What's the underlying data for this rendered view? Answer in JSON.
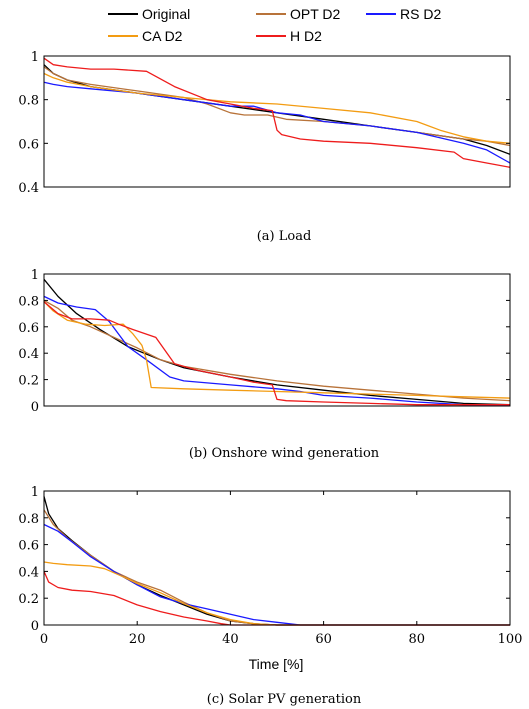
{
  "legend": [
    {
      "name": "Original",
      "color": "#000000"
    },
    {
      "name": "OPT D2",
      "color": "#b8733a"
    },
    {
      "name": "RS D2",
      "color": "#1a1aff"
    },
    {
      "name": "CA D2",
      "color": "#f39c12"
    },
    {
      "name": "H D2",
      "color": "#ee1c1c"
    }
  ],
  "chart_data": [
    {
      "type": "line",
      "caption": "(a) Load",
      "xlim": [
        0,
        100
      ],
      "ylim": [
        0.4,
        1.0
      ],
      "yticks": [
        "0.4",
        "0.6",
        "0.8",
        "1"
      ],
      "ytick_values": [
        0.4,
        0.6,
        0.8,
        1.0
      ],
      "xticks": [],
      "xlabel": "",
      "series": [
        {
          "name": "Original",
          "color": "#000000",
          "points": [
            [
              0,
              0.96
            ],
            [
              2,
              0.92
            ],
            [
              5,
              0.89
            ],
            [
              10,
              0.86
            ],
            [
              20,
              0.83
            ],
            [
              30,
              0.8
            ],
            [
              40,
              0.77
            ],
            [
              50,
              0.74
            ],
            [
              60,
              0.71
            ],
            [
              70,
              0.68
            ],
            [
              80,
              0.65
            ],
            [
              90,
              0.62
            ],
            [
              95,
              0.59
            ],
            [
              100,
              0.55
            ]
          ]
        },
        {
          "name": "OPT D2",
          "color": "#b8733a",
          "points": [
            [
              0,
              0.95
            ],
            [
              2,
              0.92
            ],
            [
              5,
              0.89
            ],
            [
              10,
              0.87
            ],
            [
              20,
              0.84
            ],
            [
              30,
              0.81
            ],
            [
              35,
              0.78
            ],
            [
              40,
              0.74
            ],
            [
              43,
              0.73
            ],
            [
              48,
              0.73
            ],
            [
              52,
              0.71
            ],
            [
              60,
              0.7
            ],
            [
              70,
              0.68
            ],
            [
              80,
              0.65
            ],
            [
              90,
              0.62
            ],
            [
              95,
              0.61
            ],
            [
              100,
              0.59
            ]
          ]
        },
        {
          "name": "RS D2",
          "color": "#1a1aff",
          "points": [
            [
              0,
              0.88
            ],
            [
              2,
              0.87
            ],
            [
              5,
              0.86
            ],
            [
              10,
              0.85
            ],
            [
              20,
              0.83
            ],
            [
              30,
              0.8
            ],
            [
              40,
              0.77
            ],
            [
              45,
              0.77
            ],
            [
              50,
              0.74
            ],
            [
              55,
              0.73
            ],
            [
              60,
              0.7
            ],
            [
              70,
              0.68
            ],
            [
              80,
              0.65
            ],
            [
              90,
              0.6
            ],
            [
              95,
              0.57
            ],
            [
              100,
              0.51
            ]
          ]
        },
        {
          "name": "CA D2",
          "color": "#f39c12",
          "points": [
            [
              0,
              0.92
            ],
            [
              2,
              0.9
            ],
            [
              5,
              0.88
            ],
            [
              10,
              0.86
            ],
            [
              20,
              0.83
            ],
            [
              30,
              0.81
            ],
            [
              40,
              0.79
            ],
            [
              50,
              0.78
            ],
            [
              60,
              0.76
            ],
            [
              70,
              0.74
            ],
            [
              80,
              0.7
            ],
            [
              85,
              0.66
            ],
            [
              90,
              0.63
            ],
            [
              95,
              0.61
            ],
            [
              100,
              0.6
            ]
          ]
        },
        {
          "name": "H D2",
          "color": "#ee1c1c",
          "points": [
            [
              0,
              0.99
            ],
            [
              2,
              0.96
            ],
            [
              5,
              0.95
            ],
            [
              10,
              0.94
            ],
            [
              15,
              0.94
            ],
            [
              22,
              0.93
            ],
            [
              28,
              0.86
            ],
            [
              35,
              0.8
            ],
            [
              40,
              0.78
            ],
            [
              45,
              0.76
            ],
            [
              49,
              0.75
            ],
            [
              50,
              0.66
            ],
            [
              51,
              0.64
            ],
            [
              55,
              0.62
            ],
            [
              60,
              0.61
            ],
            [
              70,
              0.6
            ],
            [
              80,
              0.58
            ],
            [
              88,
              0.56
            ],
            [
              90,
              0.53
            ],
            [
              95,
              0.51
            ],
            [
              100,
              0.49
            ]
          ]
        }
      ]
    },
    {
      "type": "line",
      "caption": "(b) Onshore wind generation",
      "xlim": [
        0,
        100
      ],
      "ylim": [
        0,
        1.0
      ],
      "yticks": [
        "0",
        "0.2",
        "0.4",
        "0.6",
        "0.8",
        "1"
      ],
      "ytick_values": [
        0,
        0.2,
        0.4,
        0.6,
        0.8,
        1.0
      ],
      "xticks": [],
      "xlabel": "",
      "series": [
        {
          "name": "Original",
          "color": "#000000",
          "points": [
            [
              0,
              0.96
            ],
            [
              3,
              0.83
            ],
            [
              7,
              0.7
            ],
            [
              12,
              0.58
            ],
            [
              18,
              0.45
            ],
            [
              25,
              0.35
            ],
            [
              30,
              0.29
            ],
            [
              40,
              0.22
            ],
            [
              50,
              0.16
            ],
            [
              60,
              0.12
            ],
            [
              70,
              0.08
            ],
            [
              80,
              0.05
            ],
            [
              90,
              0.02
            ],
            [
              100,
              0.01
            ]
          ]
        },
        {
          "name": "OPT D2",
          "color": "#b8733a",
          "points": [
            [
              0,
              0.8
            ],
            [
              3,
              0.74
            ],
            [
              6,
              0.65
            ],
            [
              10,
              0.6
            ],
            [
              15,
              0.52
            ],
            [
              20,
              0.44
            ],
            [
              25,
              0.35
            ],
            [
              30,
              0.3
            ],
            [
              40,
              0.24
            ],
            [
              50,
              0.19
            ],
            [
              60,
              0.15
            ],
            [
              70,
              0.12
            ],
            [
              80,
              0.09
            ],
            [
              90,
              0.06
            ],
            [
              100,
              0.04
            ]
          ]
        },
        {
          "name": "RS D2",
          "color": "#1a1aff",
          "points": [
            [
              0,
              0.83
            ],
            [
              3,
              0.78
            ],
            [
              7,
              0.75
            ],
            [
              11,
              0.73
            ],
            [
              14,
              0.64
            ],
            [
              18,
              0.45
            ],
            [
              22,
              0.35
            ],
            [
              27,
              0.22
            ],
            [
              30,
              0.19
            ],
            [
              40,
              0.16
            ],
            [
              50,
              0.13
            ],
            [
              55,
              0.11
            ],
            [
              60,
              0.08
            ],
            [
              70,
              0.06
            ],
            [
              80,
              0.03
            ],
            [
              90,
              0.01
            ],
            [
              100,
              0.01
            ]
          ]
        },
        {
          "name": "CA D2",
          "color": "#f39c12",
          "points": [
            [
              0,
              0.79
            ],
            [
              2,
              0.72
            ],
            [
              5,
              0.65
            ],
            [
              9,
              0.62
            ],
            [
              13,
              0.61
            ],
            [
              17,
              0.62
            ],
            [
              19,
              0.55
            ],
            [
              21,
              0.46
            ],
            [
              22,
              0.35
            ],
            [
              23,
              0.14
            ],
            [
              30,
              0.13
            ],
            [
              40,
              0.12
            ],
            [
              50,
              0.11
            ],
            [
              60,
              0.1
            ],
            [
              70,
              0.09
            ],
            [
              80,
              0.08
            ],
            [
              90,
              0.07
            ],
            [
              100,
              0.06
            ]
          ]
        },
        {
          "name": "H D2",
          "color": "#ee1c1c",
          "points": [
            [
              0,
              0.79
            ],
            [
              3,
              0.7
            ],
            [
              6,
              0.66
            ],
            [
              10,
              0.66
            ],
            [
              14,
              0.65
            ],
            [
              16,
              0.62
            ],
            [
              19,
              0.58
            ],
            [
              24,
              0.52
            ],
            [
              26,
              0.42
            ],
            [
              28,
              0.32
            ],
            [
              33,
              0.27
            ],
            [
              40,
              0.22
            ],
            [
              45,
              0.18
            ],
            [
              49,
              0.16
            ],
            [
              50,
              0.05
            ],
            [
              52,
              0.04
            ],
            [
              60,
              0.03
            ],
            [
              70,
              0.02
            ],
            [
              80,
              0.01
            ],
            [
              90,
              0.01
            ],
            [
              100,
              0.01
            ]
          ]
        }
      ]
    },
    {
      "type": "line",
      "caption": "(c) Solar PV generation",
      "xlim": [
        0,
        100
      ],
      "ylim": [
        0,
        1.0
      ],
      "yticks": [
        "0",
        "0.2",
        "0.4",
        "0.6",
        "0.8",
        "1"
      ],
      "ytick_values": [
        0,
        0.2,
        0.4,
        0.6,
        0.8,
        1.0
      ],
      "xticks": [
        "0",
        "20",
        "40",
        "60",
        "80",
        "100"
      ],
      "xtick_values": [
        0,
        20,
        40,
        60,
        80,
        100
      ],
      "xlabel": "Time [%]",
      "series": [
        {
          "name": "Original",
          "color": "#000000",
          "points": [
            [
              0,
              0.96
            ],
            [
              1,
              0.83
            ],
            [
              3,
              0.72
            ],
            [
              6,
              0.63
            ],
            [
              10,
              0.52
            ],
            [
              15,
              0.4
            ],
            [
              20,
              0.3
            ],
            [
              25,
              0.22
            ],
            [
              30,
              0.15
            ],
            [
              35,
              0.08
            ],
            [
              40,
              0.03
            ],
            [
              45,
              0.01
            ],
            [
              50,
              0.0
            ],
            [
              100,
              0.0
            ]
          ]
        },
        {
          "name": "OPT D2",
          "color": "#b8733a",
          "points": [
            [
              0,
              0.86
            ],
            [
              2,
              0.75
            ],
            [
              5,
              0.65
            ],
            [
              10,
              0.52
            ],
            [
              15,
              0.4
            ],
            [
              20,
              0.32
            ],
            [
              25,
              0.26
            ],
            [
              30,
              0.17
            ],
            [
              35,
              0.09
            ],
            [
              40,
              0.03
            ],
            [
              45,
              0.01
            ],
            [
              50,
              0.0
            ],
            [
              100,
              0.0
            ]
          ]
        },
        {
          "name": "RS D2",
          "color": "#1a1aff",
          "points": [
            [
              0,
              0.75
            ],
            [
              3,
              0.7
            ],
            [
              6,
              0.62
            ],
            [
              10,
              0.51
            ],
            [
              15,
              0.4
            ],
            [
              20,
              0.3
            ],
            [
              25,
              0.21
            ],
            [
              30,
              0.16
            ],
            [
              35,
              0.12
            ],
            [
              40,
              0.08
            ],
            [
              45,
              0.04
            ],
            [
              50,
              0.02
            ],
            [
              55,
              0.0
            ],
            [
              100,
              0.0
            ]
          ]
        },
        {
          "name": "CA D2",
          "color": "#f39c12",
          "points": [
            [
              0,
              0.47
            ],
            [
              2,
              0.46
            ],
            [
              5,
              0.45
            ],
            [
              10,
              0.44
            ],
            [
              13,
              0.42
            ],
            [
              17,
              0.36
            ],
            [
              20,
              0.31
            ],
            [
              25,
              0.24
            ],
            [
              30,
              0.16
            ],
            [
              35,
              0.09
            ],
            [
              40,
              0.04
            ],
            [
              45,
              0.01
            ],
            [
              50,
              0.0
            ],
            [
              100,
              0.0
            ]
          ]
        },
        {
          "name": "H D2",
          "color": "#ee1c1c",
          "points": [
            [
              0,
              0.4
            ],
            [
              1,
              0.32
            ],
            [
              3,
              0.28
            ],
            [
              6,
              0.26
            ],
            [
              10,
              0.25
            ],
            [
              15,
              0.22
            ],
            [
              20,
              0.15
            ],
            [
              25,
              0.1
            ],
            [
              30,
              0.06
            ],
            [
              35,
              0.03
            ],
            [
              38,
              0.01
            ],
            [
              40,
              0.0
            ],
            [
              100,
              0.0
            ]
          ]
        }
      ]
    }
  ]
}
